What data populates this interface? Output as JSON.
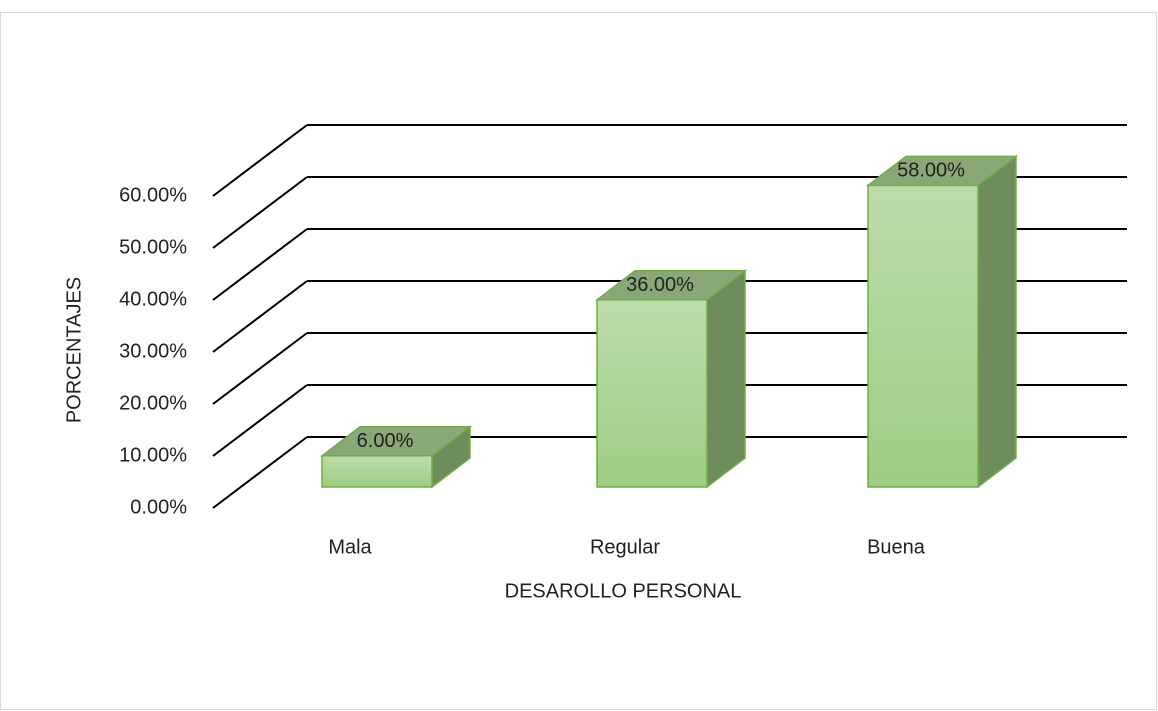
{
  "chart_data": {
    "type": "bar3d",
    "categories": [
      "Mala",
      "Regular",
      "Buena"
    ],
    "values": [
      6,
      36,
      58
    ],
    "value_labels": [
      "6.00%",
      "36.00%",
      "58.00%"
    ],
    "color": "#a9d18e",
    "ylim": [
      0,
      60
    ],
    "yticks": [
      {
        "value": 0,
        "label": "0.00%"
      },
      {
        "value": 10,
        "label": "10.00%"
      },
      {
        "value": 20,
        "label": "20.00%"
      },
      {
        "value": 30,
        "label": "30.00%"
      },
      {
        "value": 40,
        "label": "40.00%"
      },
      {
        "value": 50,
        "label": "50.00%"
      },
      {
        "value": 60,
        "label": "60.00%"
      }
    ],
    "y_label": "PORCENTAJES",
    "x_label": "DESAROLLO PERSONAL",
    "grid": true
  }
}
